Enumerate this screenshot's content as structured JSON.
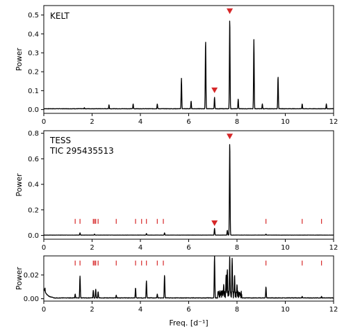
{
  "chart_data": [
    {
      "type": "line",
      "title": "KELT",
      "xlabel": "",
      "ylabel": "Power",
      "xlim": [
        0,
        12
      ],
      "ylim": [
        -0.02,
        0.55
      ],
      "x_ticks": [
        "0",
        "2",
        "4",
        "6",
        "8",
        "10",
        "12"
      ],
      "y_ticks": [
        "0.0",
        "0.1",
        "0.2",
        "0.3",
        "0.4",
        "0.5"
      ],
      "y_tick_values": [
        0.0,
        0.1,
        0.2,
        0.3,
        0.4,
        0.5
      ],
      "series": [
        {
          "peaks": [
            {
              "x": 1.68,
              "y": 0.01
            },
            {
              "x": 2.7,
              "y": 0.025
            },
            {
              "x": 3.7,
              "y": 0.03
            },
            {
              "x": 4.7,
              "y": 0.03
            },
            {
              "x": 5.7,
              "y": 0.165
            },
            {
              "x": 6.1,
              "y": 0.045
            },
            {
              "x": 6.7,
              "y": 0.365
            },
            {
              "x": 7.07,
              "y": 0.065
            },
            {
              "x": 7.7,
              "y": 0.48
            },
            {
              "x": 8.05,
              "y": 0.055
            },
            {
              "x": 8.7,
              "y": 0.37
            },
            {
              "x": 9.05,
              "y": 0.03
            },
            {
              "x": 9.7,
              "y": 0.175
            },
            {
              "x": 10.7,
              "y": 0.03
            },
            {
              "x": 11.7,
              "y": 0.03
            }
          ]
        }
      ],
      "markers": [
        {
          "x": 7.7,
          "y": 0.52
        },
        {
          "x": 7.07,
          "y": 0.102
        }
      ],
      "marker_color": "#d62728"
    },
    {
      "type": "line",
      "title": "TESS",
      "subtitle": "TIC 295435513",
      "xlabel": "",
      "ylabel": "Power",
      "xlim": [
        0,
        12
      ],
      "ylim": [
        -0.03,
        0.82
      ],
      "x_ticks": [
        "0",
        "2",
        "4",
        "6",
        "8",
        "10",
        "12"
      ],
      "y_ticks": [
        "0.0",
        "0.2",
        "0.4",
        "0.6",
        "0.8"
      ],
      "y_tick_values": [
        0.0,
        0.2,
        0.4,
        0.6,
        0.8
      ],
      "series": [
        {
          "peaks": [
            {
              "x": 1.5,
              "y": 0.02
            },
            {
              "x": 2.1,
              "y": 0.01
            },
            {
              "x": 4.25,
              "y": 0.015
            },
            {
              "x": 5.0,
              "y": 0.02
            },
            {
              "x": 7.07,
              "y": 0.055
            },
            {
              "x": 7.6,
              "y": 0.04
            },
            {
              "x": 7.7,
              "y": 0.73
            },
            {
              "x": 9.2,
              "y": 0.01
            }
          ]
        }
      ],
      "markers": [
        {
          "x": 7.7,
          "y": 0.775
        },
        {
          "x": 7.07,
          "y": 0.095
        }
      ],
      "marker_color": "#d62728",
      "combination_frequencies": [
        1.3,
        1.5,
        2.05,
        2.1,
        2.15,
        2.25,
        3.0,
        3.8,
        4.05,
        4.25,
        4.7,
        4.95,
        9.2,
        10.7,
        11.5
      ],
      "combination_tick_y": 0.11
    },
    {
      "type": "line",
      "title": "",
      "xlabel": "Freq. [d⁻¹]",
      "ylabel": "Power",
      "xlim": [
        0,
        12
      ],
      "ylim": [
        -0.002,
        0.036
      ],
      "x_ticks": [
        "0",
        "2",
        "4",
        "6",
        "8",
        "10",
        "12"
      ],
      "y_ticks": [
        "0.00",
        "0.02"
      ],
      "y_tick_values": [
        0.0,
        0.02
      ],
      "series": [
        {
          "peaks": [
            {
              "x": 0.05,
              "y": 0.009
            },
            {
              "x": 1.3,
              "y": 0.004
            },
            {
              "x": 1.5,
              "y": 0.019
            },
            {
              "x": 2.05,
              "y": 0.007
            },
            {
              "x": 2.15,
              "y": 0.008
            },
            {
              "x": 2.25,
              "y": 0.006
            },
            {
              "x": 3.0,
              "y": 0.003
            },
            {
              "x": 3.8,
              "y": 0.009
            },
            {
              "x": 4.25,
              "y": 0.015
            },
            {
              "x": 4.7,
              "y": 0.004
            },
            {
              "x": 5.0,
              "y": 0.02
            },
            {
              "x": 7.07,
              "y": 0.036
            },
            {
              "x": 7.45,
              "y": 0.012
            },
            {
              "x": 7.55,
              "y": 0.02
            },
            {
              "x": 7.6,
              "y": 0.025
            },
            {
              "x": 7.7,
              "y": 0.036
            },
            {
              "x": 7.8,
              "y": 0.034
            },
            {
              "x": 7.9,
              "y": 0.02
            },
            {
              "x": 8.0,
              "y": 0.012
            },
            {
              "x": 9.2,
              "y": 0.01
            },
            {
              "x": 10.7,
              "y": 0.002
            },
            {
              "x": 11.5,
              "y": 0.002
            }
          ]
        }
      ],
      "combination_frequencies": [
        1.3,
        1.5,
        2.05,
        2.1,
        2.15,
        2.25,
        3.0,
        3.8,
        4.05,
        4.25,
        4.7,
        4.95,
        9.2,
        10.7,
        11.5
      ],
      "combination_tick_y": 0.03,
      "marker_color": "#d62728"
    }
  ]
}
